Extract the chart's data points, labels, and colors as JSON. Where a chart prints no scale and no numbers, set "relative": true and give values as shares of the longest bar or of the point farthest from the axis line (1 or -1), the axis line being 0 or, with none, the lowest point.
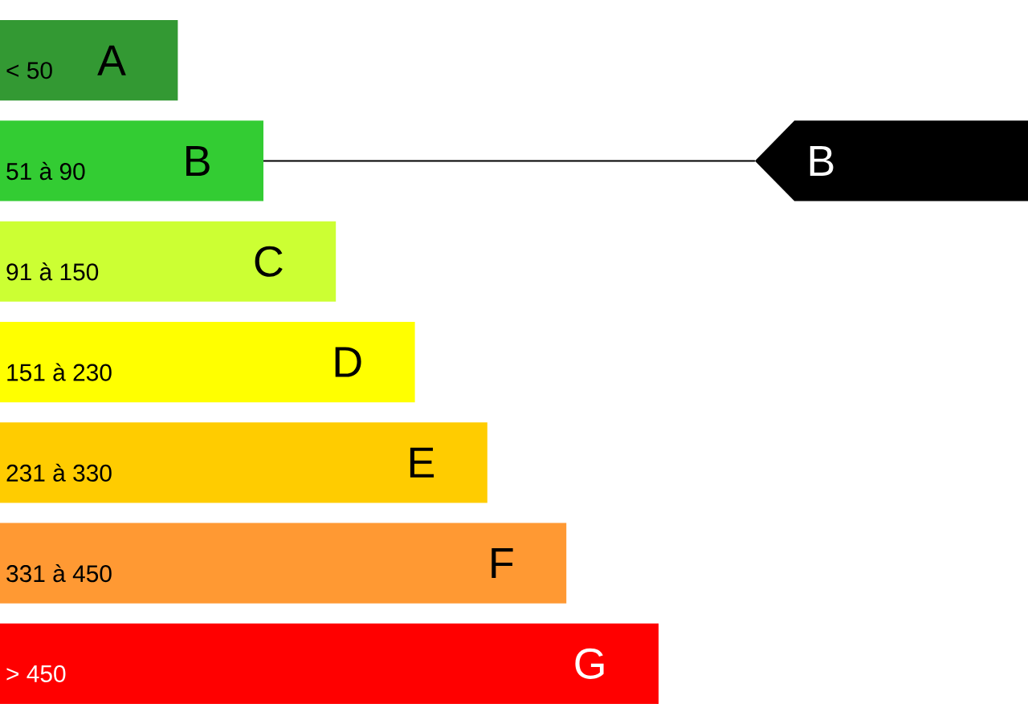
{
  "chart_data": {
    "type": "bar",
    "orientation": "horizontal",
    "relative": true,
    "categories": [
      "< 50",
      "51 à 90",
      "91 à 150",
      "151 à 230",
      "231 à 330",
      "331 à 450",
      "> 450"
    ],
    "values": [
      0.27,
      0.4,
      0.51,
      0.63,
      0.74,
      0.86,
      1
    ],
    "colors": [
      "#339933",
      "#33cc33",
      "#ccff33",
      "#ffff00",
      "#ffcc00",
      "#ff9933",
      "#ff0000"
    ],
    "annotations": [
      "A",
      "B",
      "C",
      "D",
      "E",
      "F",
      "G",
      "B"
    ]
  }
}
